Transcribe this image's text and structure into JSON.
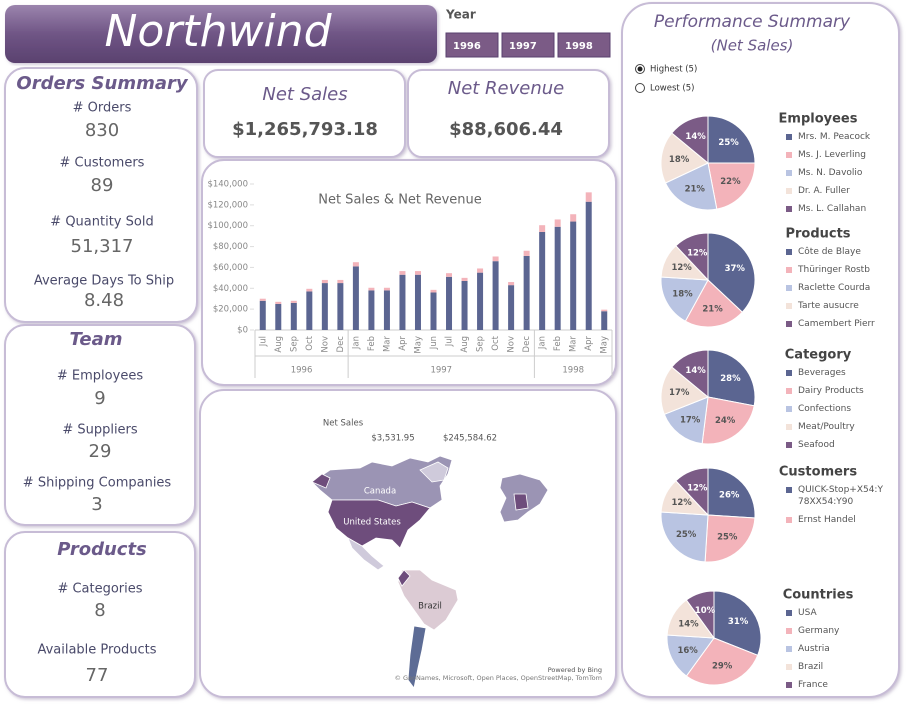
{
  "header": {
    "title": "Northwind"
  },
  "year_filter": {
    "label": "Year",
    "options": [
      "1996",
      "1997",
      "1998"
    ]
  },
  "orders_summary": {
    "title": "Orders Summary",
    "items": [
      {
        "label": "# Orders",
        "value": "830"
      },
      {
        "label": "# Customers",
        "value": "89"
      },
      {
        "label": "# Quantity Sold",
        "value": "51,317"
      },
      {
        "label": "Average Days To Ship",
        "value": "8.48"
      }
    ]
  },
  "team": {
    "title": "Team",
    "items": [
      {
        "label": "# Employees",
        "value": "9"
      },
      {
        "label": "# Suppliers",
        "value": "29"
      },
      {
        "label": "# Shipping Companies",
        "value": "3"
      }
    ]
  },
  "products": {
    "title": "Products",
    "items": [
      {
        "label": "# Categories",
        "value": "8"
      },
      {
        "label": "Available Products",
        "value": "77"
      }
    ]
  },
  "kpis": [
    {
      "label": "Net Sales",
      "value": "$1,265,793.18"
    },
    {
      "label": "Net Revenue",
      "value": "$88,606.44"
    }
  ],
  "sales_chart": {
    "type": "bar",
    "stacked": true,
    "title": "Net Sales & Net Revenue",
    "periods": [
      {
        "year": "1996",
        "months": [
          "Jul",
          "Aug",
          "Sep",
          "Oct",
          "Nov",
          "Dec"
        ]
      },
      {
        "year": "1997",
        "months": [
          "Jan",
          "Feb",
          "Mar",
          "Apr",
          "May",
          "Jun",
          "Jul",
          "Aug",
          "Sep",
          "Oct",
          "Nov",
          "Dec"
        ]
      },
      {
        "year": "1998",
        "months": [
          "Jan",
          "Feb",
          "Mar",
          "Apr",
          "May"
        ]
      }
    ],
    "series": [
      {
        "color": "#5b6591",
        "values": [
          28000,
          25000,
          26000,
          37000,
          45000,
          45000,
          61000,
          38000,
          38000,
          53000,
          53000,
          36000,
          51000,
          47000,
          55000,
          66000,
          43000,
          71000,
          94000,
          99000,
          104000,
          123000,
          18000
        ]
      },
      {
        "color": "#f3b3ba",
        "values": [
          2000,
          2000,
          2000,
          2500,
          3000,
          3000,
          4000,
          2500,
          2500,
          3500,
          3500,
          2500,
          3500,
          3000,
          4000,
          4500,
          3000,
          5000,
          6500,
          7000,
          7000,
          9000,
          1500
        ]
      }
    ],
    "ylim": [
      0,
      140000
    ],
    "yticks": [
      {
        "value": 0,
        "label": "$0"
      },
      {
        "value": 20000,
        "label": "$20,000"
      },
      {
        "value": 40000,
        "label": "$40,000"
      },
      {
        "value": 60000,
        "label": "$60,000"
      },
      {
        "value": 80000,
        "label": "$80,000"
      },
      {
        "value": 100000,
        "label": "$100,000"
      },
      {
        "value": 120000,
        "label": "$120,000"
      },
      {
        "value": 140000,
        "label": "$140,000"
      }
    ]
  },
  "map": {
    "title": "Net Sales",
    "legend_min": "$3,531.95",
    "legend_max": "$245,584.62",
    "labels": [
      "Canada",
      "United States",
      "Brazil"
    ],
    "attribution": "Powered by Bing",
    "copyright": "© GeoNames, Microsoft, Open Places, OpenStreetMap, TomTom"
  },
  "performance": {
    "title": "Performance Summary",
    "subtitle": "(Net Sales)",
    "options": [
      "Highest (5)",
      "Lowest (5)"
    ],
    "selected": 0,
    "colors": [
      "#5b6591",
      "#f3b3ba",
      "#b9c4e2",
      "#f3e3da",
      "#7b5b86"
    ],
    "pies": [
      {
        "type": "pie",
        "title": "Employees",
        "categories": [
          "Mrs. M. Peacock",
          "Ms. J. Leverling",
          "Ms. N. Davolio",
          "Dr. A. Fuller",
          "Ms. L. Callahan"
        ],
        "values": [
          25,
          22,
          21,
          18,
          14
        ],
        "value_labels": [
          "25%",
          "22%",
          "21%",
          "18%",
          "14%"
        ]
      },
      {
        "type": "pie",
        "title": "Products",
        "categories": [
          "Côte de Blaye",
          "Thüringer Rostb",
          "Raclette Courda",
          "Tarte ausucre",
          "Camembert Pierr"
        ],
        "values": [
          37,
          21,
          18,
          12,
          12
        ],
        "value_labels": [
          "37%",
          "21%",
          "18%",
          "12%",
          "12%"
        ]
      },
      {
        "type": "pie",
        "title": "Category",
        "categories": [
          "Beverages",
          "Dairy Products",
          "Confections",
          "Meat/Poultry",
          "Seafood"
        ],
        "values": [
          28,
          24,
          17,
          17,
          14
        ],
        "value_labels": [
          "28%",
          "24%",
          "17%",
          "17%",
          "14%"
        ]
      },
      {
        "type": "pie",
        "title": "Customers",
        "categories": [
          "QUICK-Stop+X54:Y78XX54:Y90",
          "Ernst Handel",
          null,
          null,
          null
        ],
        "values": [
          26,
          25,
          25,
          12,
          12
        ],
        "value_labels": [
          "26%",
          "25%",
          "25%",
          "12%",
          "12%"
        ]
      },
      {
        "type": "pie",
        "title": "Countries",
        "categories": [
          "USA",
          "Germany",
          "Austria",
          "Brazil",
          "France"
        ],
        "values": [
          31,
          29,
          16,
          14,
          10
        ],
        "value_labels": [
          "31%",
          "29%",
          "16%",
          "14%",
          "10%"
        ]
      }
    ]
  }
}
